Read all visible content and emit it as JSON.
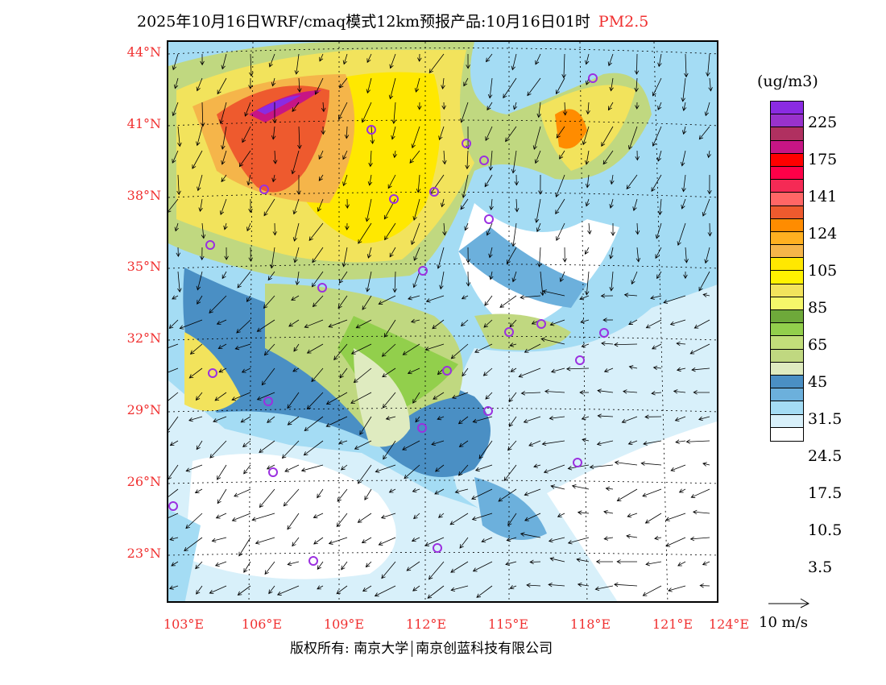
{
  "title": {
    "main": "2025年10月16日WRF/cmaq模式12km预报产品:10月16日01时",
    "species": "PM2.5"
  },
  "axes": {
    "lat": [
      "44°N",
      "41°N",
      "38°N",
      "35°N",
      "32°N",
      "29°N",
      "26°N",
      "23°N"
    ],
    "lon": [
      "103°E",
      "106°E",
      "109°E",
      "112°E",
      "115°E",
      "118°E",
      "121°E",
      "124°E"
    ]
  },
  "legend": {
    "unit": "(ug/m3)",
    "colors": [
      "#8a2be2",
      "#9932cc",
      "#b03060",
      "#c71585",
      "#ff0000",
      "#ff0048",
      "#f52a55",
      "#ff6666",
      "#ee5a2e",
      "#ff8c00",
      "#ffb020",
      "#f5b54a",
      "#ffe800",
      "#fff200",
      "#f2e35c",
      "#f5f76a",
      "#6ea93a",
      "#92cf4c",
      "#c2de7a",
      "#c0d880",
      "#dfebc0",
      "#4a8fc4",
      "#6cb0dc",
      "#a4dcf4",
      "#d8f0fa",
      "#ffffff"
    ],
    "labels": [
      "225",
      "175",
      "141",
      "124",
      "105",
      "85",
      "65",
      "45",
      "31.5",
      "24.5",
      "17.5",
      "10.5",
      "3.5"
    ]
  },
  "wind_scale": "10 m/s",
  "footer": {
    "copyright": "版权所有: 南京大学",
    "company": "南京创蓝科技有限公司"
  }
}
